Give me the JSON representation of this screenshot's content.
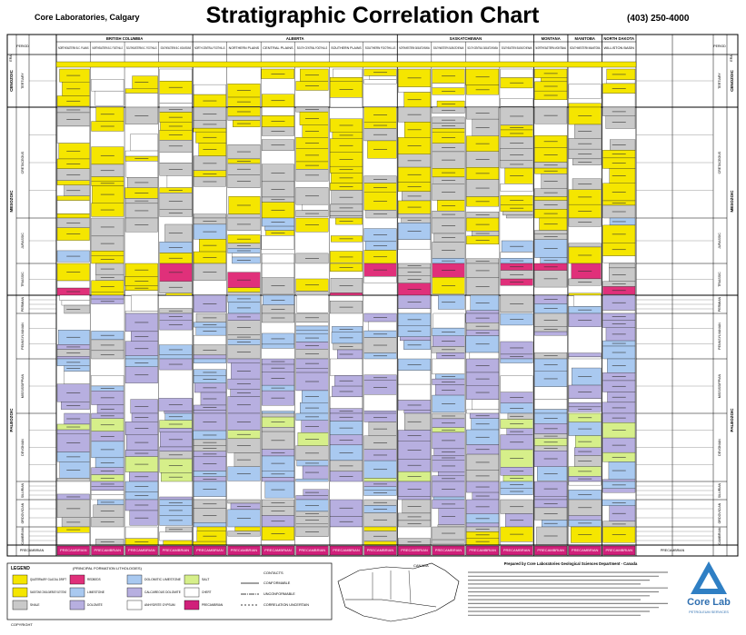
{
  "header": {
    "company": "Core Laboratories, Calgary",
    "title": "Stratigraphic Correlation Chart",
    "phone": "(403) 250-4000"
  },
  "time_scale": {
    "era_heading": "ERA",
    "period_heading": "PERIOD",
    "eras": [
      "CENOZOIC",
      "MESOZOIC",
      "PALEOZOIC"
    ],
    "precambrian": "PRECAMBRIAN",
    "periods": [
      "TERTIARY",
      "CRETACEOUS",
      "JURASSIC",
      "TRIASSIC",
      "PERMIAN",
      "PENNSYLVANIAN",
      "MISSISSIPPIAN",
      "DEVONIAN",
      "SILURIAN",
      "ORDOVICIAN",
      "CAMBRIAN"
    ]
  },
  "regions": [
    {
      "name": "BRITISH COLUMBIA",
      "columns": [
        "NORTHEASTERN B.C. PLAINS",
        "NORTHEASTERN B.C. FOOTHILLS",
        "SOUTHEASTERN B.C. FOOTHILLS",
        "SOUTHEASTERN B.C. MOUNTAINS"
      ]
    },
    {
      "name": "ALBERTA",
      "columns": [
        "NORTH CENTRAL FOOTHILLS",
        "NORTHERN PLAINS",
        "CENTRAL PLAINS",
        "SOUTH CENTRAL FOOTHILLS",
        "SOUTHERN PLAINS",
        "SOUTHERN FOOTHILLS"
      ]
    },
    {
      "name": "SASKATCHEWAN",
      "columns": [
        "NORTHWESTERN SASKATCHEWAN",
        "SOUTHWESTERN SASKATCHEWAN",
        "SOUTH CENTRAL SASKATCHEWAN",
        "SOUTHEASTERN SASKATCHEWAN"
      ]
    },
    {
      "name": "MONTANA",
      "columns": [
        "NORTHEASTERN MONTANA"
      ]
    },
    {
      "name": "MANITOBA",
      "columns": [
        "SOUTHWESTERN MANITOBA"
      ]
    },
    {
      "name": "NORTH DAKOTA",
      "columns": [
        "WILLISTON BASIN"
      ]
    }
  ],
  "legend": {
    "title": "LEGEND",
    "subtitle": "(PRINCIPAL FORMATION LITHOLOGIES)",
    "items": [
      {
        "label": "QUATERNARY GLACIAL DRIFT",
        "color": "#f5e600"
      },
      {
        "label": "SANDSTONE CONGLOMERATE SILTSTONE",
        "color": "#f5e600"
      },
      {
        "label": "SHALE",
        "color": "#c9c9c9"
      },
      {
        "label": "REDBEDS",
        "color": "#e0307a"
      },
      {
        "label": "LIMESTONE",
        "color": "#a9c9f0"
      },
      {
        "label": "DOLOMITE",
        "color": "#b7afe0"
      },
      {
        "label": "DOLOMITIC LIMESTONE",
        "color": "#a9c9f0"
      },
      {
        "label": "CALCAREOUS DOLOMITE",
        "color": "#b7afe0"
      },
      {
        "label": "ANHYDRITE GYPSUM",
        "color": "#ffffff"
      },
      {
        "label": "SALT",
        "color": "#d6ef8a"
      },
      {
        "label": "CHERT",
        "color": "#ffffff"
      },
      {
        "label": "PRECAMBRIAN",
        "color": "#d0207a"
      }
    ],
    "contacts_title": "CONTACTS",
    "contacts": [
      "CONFORMABLE",
      "UNCONFORMABLE",
      "CORRELATION UNCERTAIN"
    ]
  },
  "map": {
    "label": "CANADA"
  },
  "credits": {
    "prepared_by": "Prepared by Core Laboratories Geological Sciences Department - Canada",
    "logo": "Core Lab",
    "logo_sub": "PETROLEUM SERVICES",
    "copyright": "COPYRIGHT"
  }
}
